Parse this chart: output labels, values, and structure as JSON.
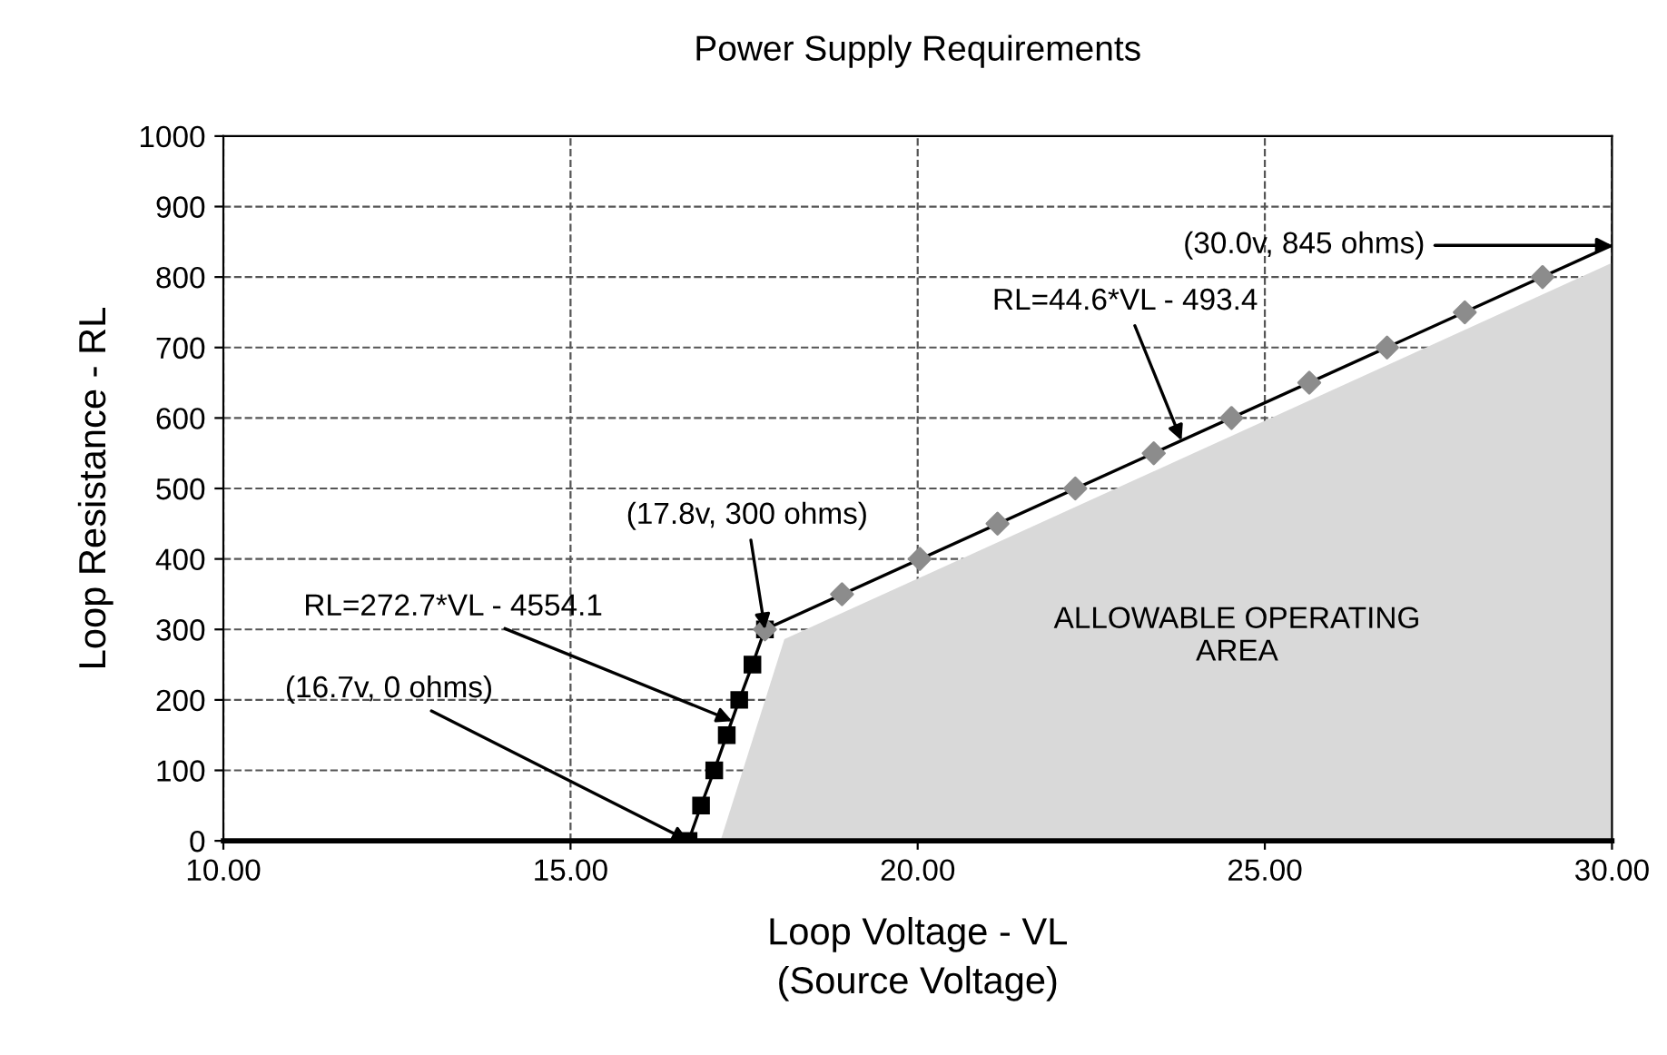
{
  "chart_data": {
    "type": "line",
    "title": "Power Supply Requirements",
    "xlabel": "Loop Voltage - VL\n(Source Voltage)",
    "ylabel": "Loop Resistance - RL",
    "xlim": [
      10,
      30
    ],
    "ylim": [
      0,
      1000
    ],
    "xticks": [
      {
        "value": 10,
        "label": "10.00"
      },
      {
        "value": 15,
        "label": "15.00"
      },
      {
        "value": 20,
        "label": "20.00"
      },
      {
        "value": 25,
        "label": "25.00"
      },
      {
        "value": 30,
        "label": "30.00"
      }
    ],
    "yticks": [
      0,
      100,
      200,
      300,
      400,
      500,
      600,
      700,
      800,
      900,
      1000
    ],
    "grid": true,
    "legend": false,
    "series": [
      {
        "type": "area",
        "color": "#d9d9d9",
        "x": [
          17.16,
          18.08,
          30
        ],
        "values": [
          0,
          286,
          820
        ]
      },
      {
        "color": "#000000",
        "x": [
          17.8,
          30
        ],
        "values": [
          300,
          845
        ]
      },
      {
        "color": "#000000",
        "marker": "square",
        "x": [
          16.7,
          16.88,
          17.07,
          17.25,
          17.43,
          17.62,
          17.8
        ],
        "values": [
          0,
          50,
          100,
          150,
          200,
          250,
          300
        ]
      },
      {
        "type": "scatter",
        "color": "#8c8c8c",
        "marker": "diamond",
        "x": [
          17.8,
          18.91,
          20.03,
          21.15,
          22.27,
          23.4,
          24.52,
          25.64,
          26.76,
          27.88,
          29.0
        ],
        "values": [
          300,
          350,
          400,
          450,
          500,
          550,
          600,
          650,
          700,
          750,
          800
        ]
      }
    ],
    "annotations": [
      {
        "text": "(30.0v, 845 ohms)",
        "x": 30,
        "y": 845
      },
      {
        "text": "RL=44.6*VL - 493.4",
        "x": 23.8,
        "y": 568
      },
      {
        "text": "(17.8v, 300 ohms)",
        "x": 17.8,
        "y": 300
      },
      {
        "text": "RL=272.7*VL - 4554.1",
        "x": 17.33,
        "y": 170
      },
      {
        "text": "(16.7v, 0 ohms)",
        "x": 16.7,
        "y": 0
      },
      "ALLOWABLE OPERATING\nAREA"
    ]
  }
}
